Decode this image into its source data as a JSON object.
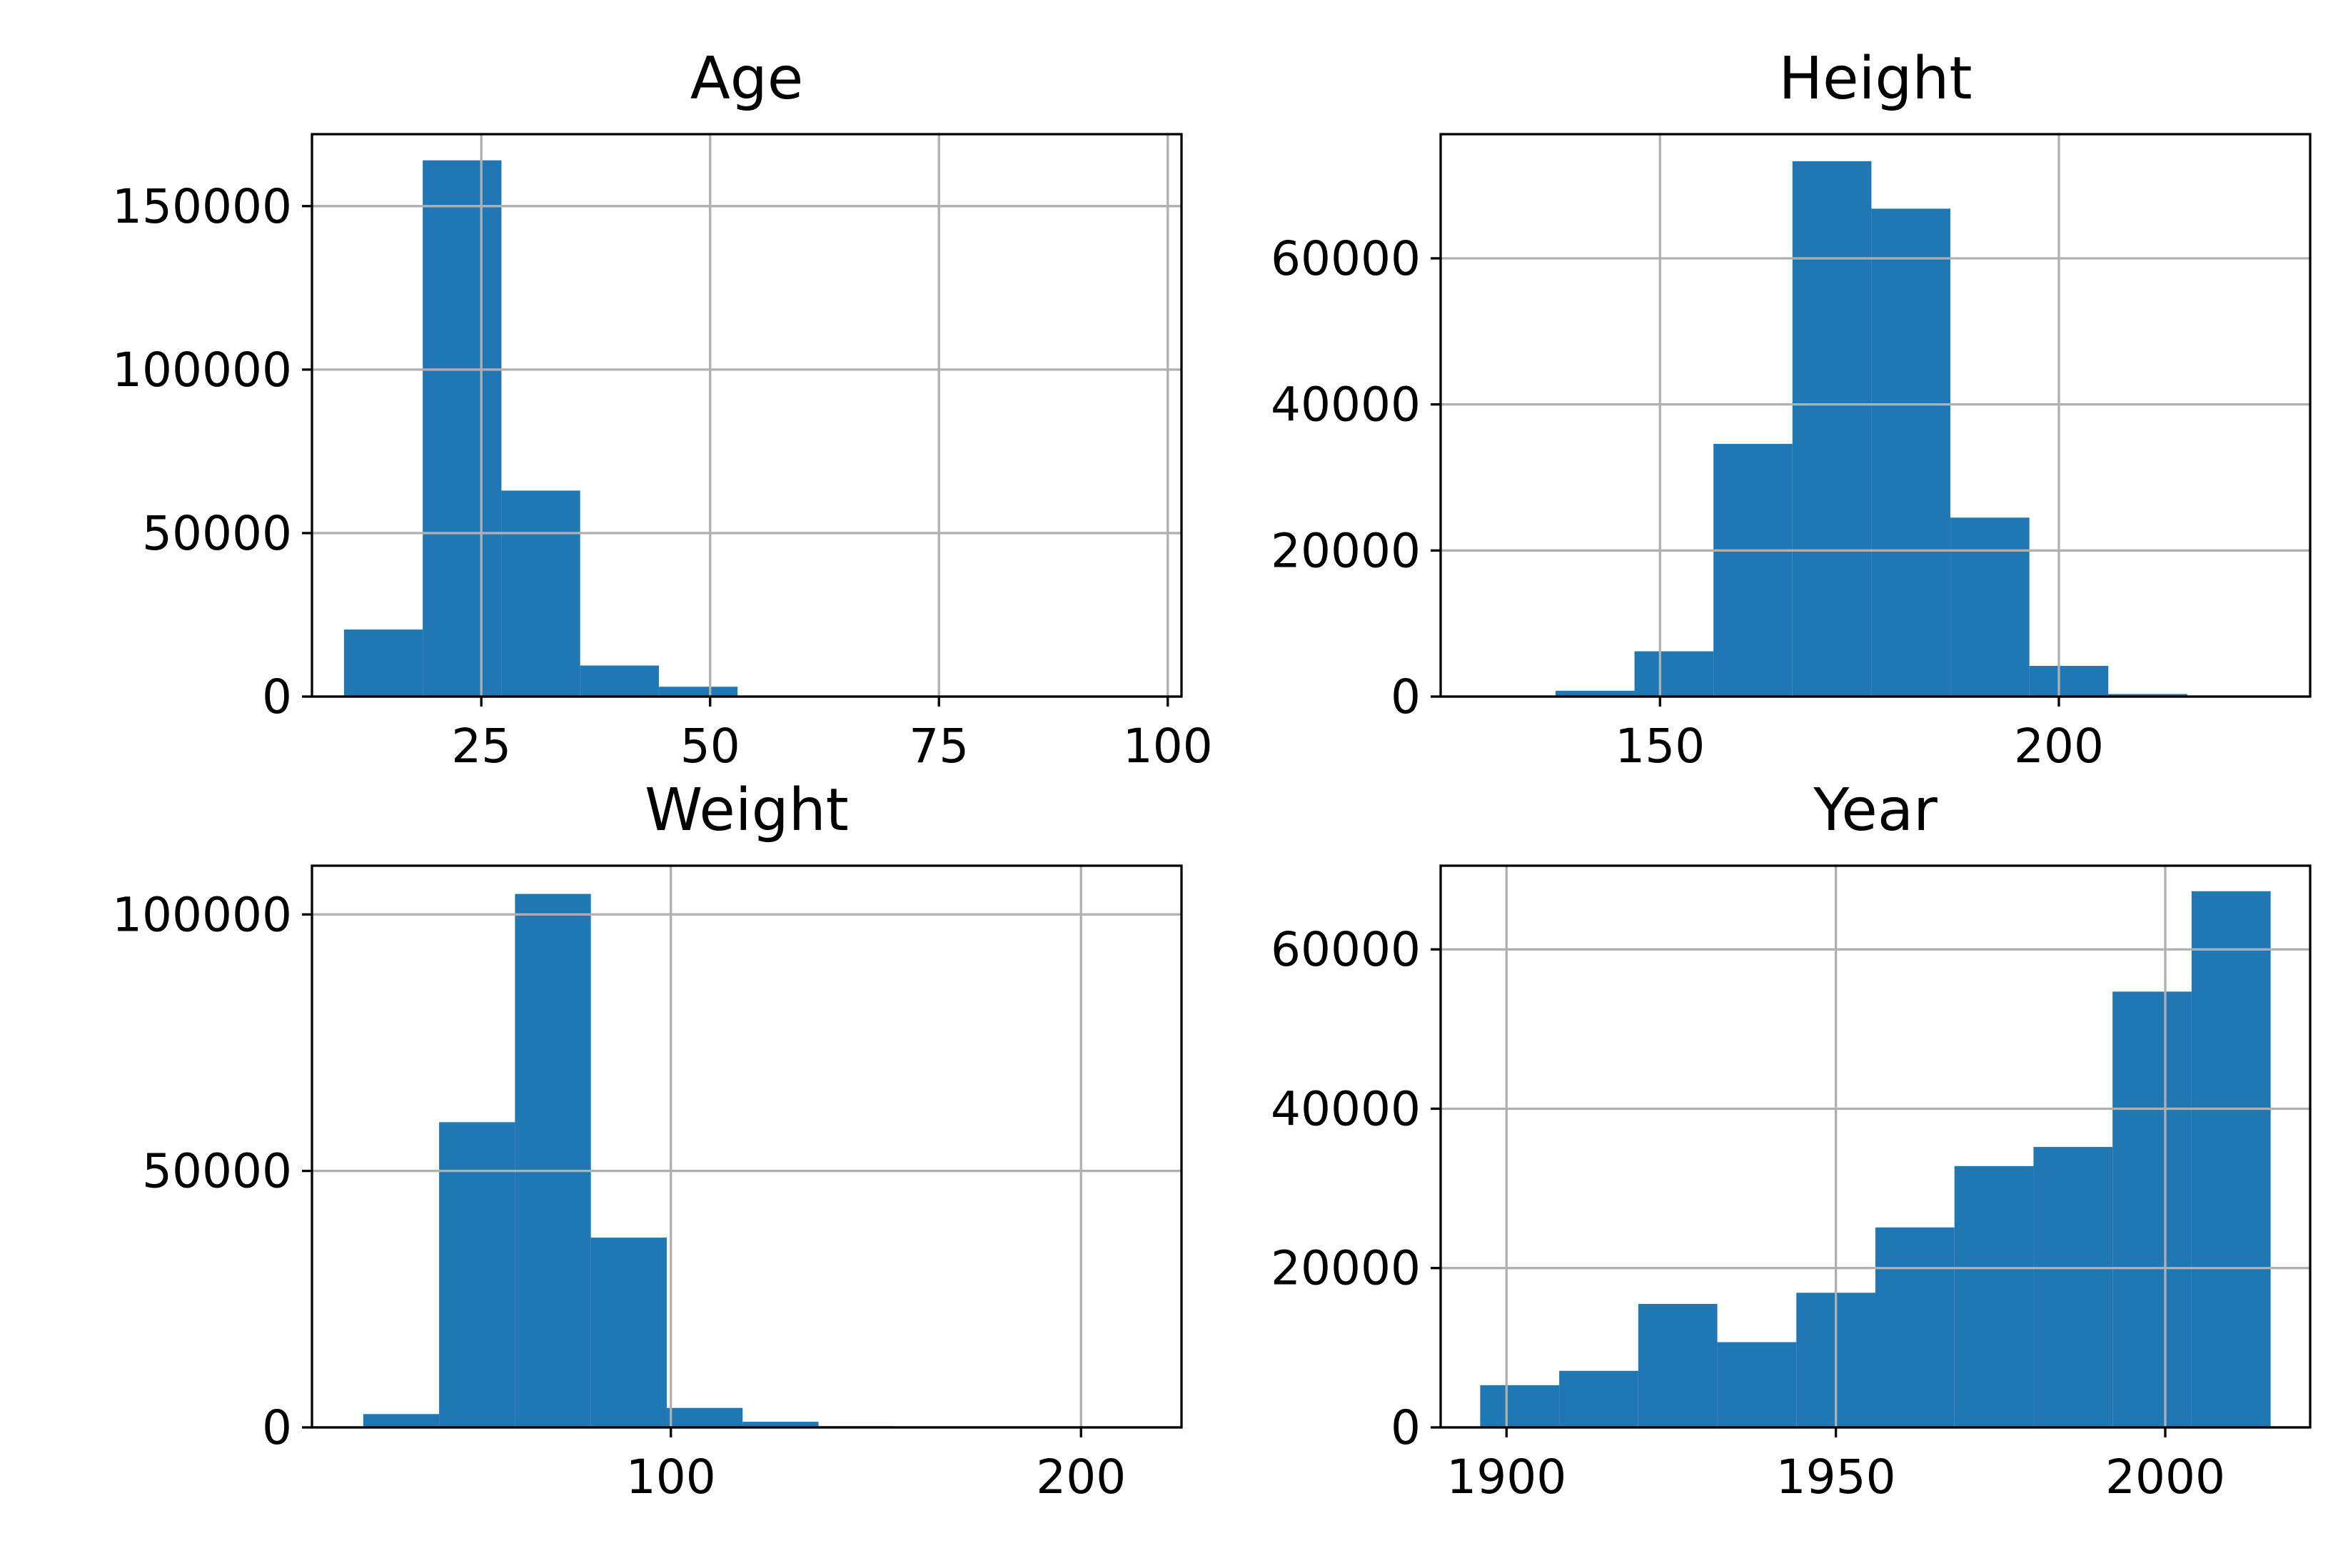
{
  "chart_data": [
    {
      "type": "bar",
      "title": "Age",
      "bar_color": "#1f77b4",
      "grid": true,
      "xlim": [
        6.5,
        101.5
      ],
      "ylim": [
        0,
        172000
      ],
      "xticks": [
        25,
        50,
        75,
        100
      ],
      "yticks": [
        0,
        50000,
        100000,
        150000
      ],
      "bins": [
        {
          "x0": 10.0,
          "x1": 18.6,
          "count": 20500
        },
        {
          "x0": 18.6,
          "x1": 27.2,
          "count": 164000
        },
        {
          "x0": 27.2,
          "x1": 35.8,
          "count": 63000
        },
        {
          "x0": 35.8,
          "x1": 44.4,
          "count": 9500
        },
        {
          "x0": 44.4,
          "x1": 53.0,
          "count": 3000
        },
        {
          "x0": 53.0,
          "x1": 61.6,
          "count": 300
        },
        {
          "x0": 61.6,
          "x1": 70.2,
          "count": 150
        },
        {
          "x0": 70.2,
          "x1": 78.8,
          "count": 80
        },
        {
          "x0": 78.8,
          "x1": 87.4,
          "count": 30
        },
        {
          "x0": 87.4,
          "x1": 96.0,
          "count": 10
        }
      ]
    },
    {
      "type": "bar",
      "title": "Height",
      "bar_color": "#1f77b4",
      "grid": true,
      "xlim": [
        122.5,
        231.5
      ],
      "ylim": [
        0,
        77000
      ],
      "xticks": [
        150,
        200
      ],
      "yticks": [
        0,
        20000,
        40000,
        60000
      ],
      "bins": [
        {
          "x0": 127.0,
          "x1": 136.9,
          "count": 100
        },
        {
          "x0": 136.9,
          "x1": 146.8,
          "count": 800
        },
        {
          "x0": 146.8,
          "x1": 156.7,
          "count": 6200
        },
        {
          "x0": 156.7,
          "x1": 166.6,
          "count": 34600
        },
        {
          "x0": 166.6,
          "x1": 176.5,
          "count": 73300
        },
        {
          "x0": 176.5,
          "x1": 186.4,
          "count": 66800
        },
        {
          "x0": 186.4,
          "x1": 196.3,
          "count": 24500
        },
        {
          "x0": 196.3,
          "x1": 206.2,
          "count": 4200
        },
        {
          "x0": 206.2,
          "x1": 216.1,
          "count": 350
        },
        {
          "x0": 216.1,
          "x1": 226.0,
          "count": 30
        }
      ]
    },
    {
      "type": "bar",
      "title": "Weight",
      "bar_color": "#1f77b4",
      "grid": true,
      "xlim": [
        12.5,
        224.5
      ],
      "ylim": [
        0,
        109500
      ],
      "xticks": [
        100,
        200
      ],
      "yticks": [
        0,
        50000,
        100000
      ],
      "bins": [
        {
          "x0": 25.0,
          "x1": 43.5,
          "count": 2600
        },
        {
          "x0": 43.5,
          "x1": 62.0,
          "count": 59500
        },
        {
          "x0": 62.0,
          "x1": 80.5,
          "count": 104000
        },
        {
          "x0": 80.5,
          "x1": 99.0,
          "count": 37000
        },
        {
          "x0": 99.0,
          "x1": 117.5,
          "count": 3800
        },
        {
          "x0": 117.5,
          "x1": 136.0,
          "count": 1100
        },
        {
          "x0": 136.0,
          "x1": 154.5,
          "count": 250
        },
        {
          "x0": 154.5,
          "x1": 173.0,
          "count": 60
        },
        {
          "x0": 173.0,
          "x1": 191.5,
          "count": 20
        },
        {
          "x0": 191.5,
          "x1": 210.0,
          "count": 10
        }
      ]
    },
    {
      "type": "bar",
      "title": "Year",
      "bar_color": "#1f77b4",
      "grid": true,
      "xlim": [
        1890.0,
        2022.0
      ],
      "ylim": [
        0,
        70500
      ],
      "xticks": [
        1900,
        1950,
        2000
      ],
      "yticks": [
        0,
        20000,
        40000,
        60000
      ],
      "bins": [
        {
          "x0": 1896.0,
          "x1": 1908.0,
          "count": 5300
        },
        {
          "x0": 1908.0,
          "x1": 1920.0,
          "count": 7100
        },
        {
          "x0": 1920.0,
          "x1": 1932.0,
          "count": 15500
        },
        {
          "x0": 1932.0,
          "x1": 1944.0,
          "count": 10700
        },
        {
          "x0": 1944.0,
          "x1": 1956.0,
          "count": 16900
        },
        {
          "x0": 1956.0,
          "x1": 1968.0,
          "count": 25100
        },
        {
          "x0": 1968.0,
          "x1": 1980.0,
          "count": 32800
        },
        {
          "x0": 1980.0,
          "x1": 1992.0,
          "count": 35200
        },
        {
          "x0": 1992.0,
          "x1": 2004.0,
          "count": 54700
        },
        {
          "x0": 2004.0,
          "x1": 2016.0,
          "count": 67300
        }
      ]
    }
  ]
}
